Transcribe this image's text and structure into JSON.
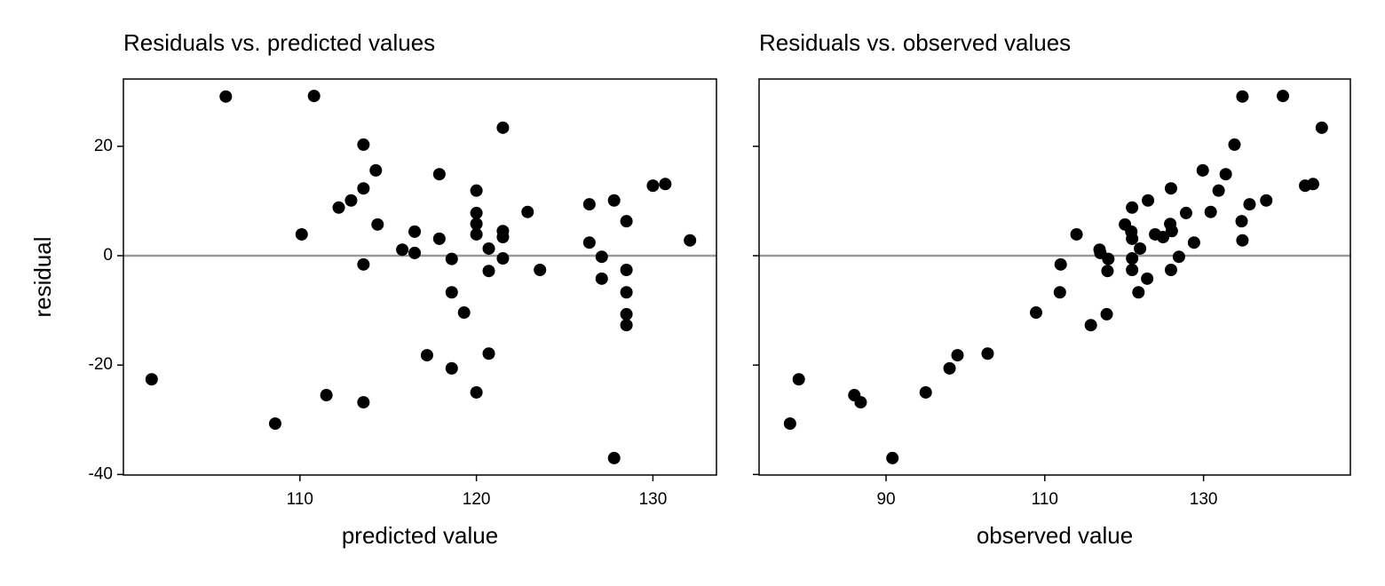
{
  "chart_data": [
    {
      "type": "scatter",
      "title": "Residuals vs. predicted values",
      "xlabel": "predicted value",
      "ylabel": "residual",
      "x": [
        101.6,
        105.8,
        108.6,
        110.1,
        110.8,
        111.5,
        112.2,
        112.9,
        113.6,
        113.6,
        113.6,
        113.6,
        114.3,
        114.4,
        115.8,
        116.5,
        116.5,
        117.2,
        117.9,
        117.9,
        118.6,
        118.6,
        118.6,
        119.3,
        120.0,
        120.0,
        120.0,
        120.0,
        120.0,
        120.7,
        120.7,
        120.7,
        121.5,
        121.5,
        121.5,
        121.5,
        122.9,
        123.6,
        126.4,
        126.4,
        127.1,
        127.1,
        127.8,
        127.8,
        128.5,
        128.5,
        128.5,
        128.5,
        128.5,
        130.0,
        130.7,
        132.1
      ],
      "values": [
        -22.6,
        29.1,
        -30.7,
        3.9,
        29.2,
        -25.5,
        8.8,
        10.1,
        20.3,
        12.3,
        -1.6,
        -26.8,
        15.6,
        5.7,
        1.1,
        4.4,
        0.5,
        -18.2,
        14.9,
        3.1,
        -0.6,
        -6.7,
        -20.6,
        -10.4,
        11.9,
        7.8,
        5.8,
        3.9,
        -25.0,
        1.3,
        -2.8,
        -17.9,
        23.4,
        4.5,
        3.4,
        -0.5,
        8.0,
        -2.6,
        9.4,
        2.4,
        -0.2,
        -4.2,
        10.1,
        -37.0,
        6.3,
        -2.6,
        -6.7,
        -10.7,
        -12.7,
        12.8,
        13.1,
        2.8
      ],
      "color": "#000000",
      "reference_line": 0,
      "reference_color": "#999999",
      "xlim": [
        100,
        133.6
      ],
      "ylim": [
        -40.1,
        32.3
      ],
      "xticks": [
        110,
        120,
        130
      ],
      "yticks": [
        -40,
        -20,
        0,
        20
      ],
      "show_ytick_labels": true
    },
    {
      "type": "scatter",
      "title": "Residuals vs. observed values",
      "xlabel": "observed value",
      "x": [
        79.0,
        134.9,
        77.9,
        114.0,
        140.0,
        86.0,
        121.0,
        123.0,
        133.9,
        125.9,
        112.0,
        86.8,
        129.9,
        120.1,
        116.9,
        120.9,
        117.0,
        99.0,
        132.8,
        121.0,
        118.0,
        111.9,
        98.0,
        108.9,
        131.9,
        127.8,
        125.8,
        123.9,
        95.0,
        122.0,
        117.9,
        102.8,
        144.9,
        126.0,
        124.9,
        121.0,
        130.9,
        121.0,
        135.8,
        128.8,
        126.9,
        122.9,
        137.9,
        90.8,
        134.8,
        125.9,
        121.8,
        117.8,
        115.8,
        142.8,
        143.8,
        134.9
      ],
      "values": [
        -22.6,
        29.1,
        -30.7,
        3.9,
        29.2,
        -25.5,
        8.8,
        10.1,
        20.3,
        12.3,
        -1.6,
        -26.8,
        15.6,
        5.7,
        1.1,
        4.4,
        0.5,
        -18.2,
        14.9,
        3.1,
        -0.6,
        -6.7,
        -20.6,
        -10.4,
        11.9,
        7.8,
        5.8,
        3.9,
        -25.0,
        1.3,
        -2.8,
        -17.9,
        23.4,
        4.5,
        3.4,
        -0.5,
        8.0,
        -2.6,
        9.4,
        2.4,
        -0.2,
        -4.2,
        10.1,
        -37.0,
        6.3,
        -2.6,
        -6.7,
        -10.7,
        -12.7,
        12.8,
        13.1,
        2.8
      ],
      "color": "#000000",
      "reference_line": 0,
      "reference_color": "#999999",
      "xlim": [
        74,
        148.5
      ],
      "ylim": [
        -40.1,
        32.3
      ],
      "xticks": [
        90,
        110,
        130
      ],
      "yticks": [
        -40,
        -20,
        0,
        20
      ],
      "show_ytick_labels": false
    }
  ]
}
